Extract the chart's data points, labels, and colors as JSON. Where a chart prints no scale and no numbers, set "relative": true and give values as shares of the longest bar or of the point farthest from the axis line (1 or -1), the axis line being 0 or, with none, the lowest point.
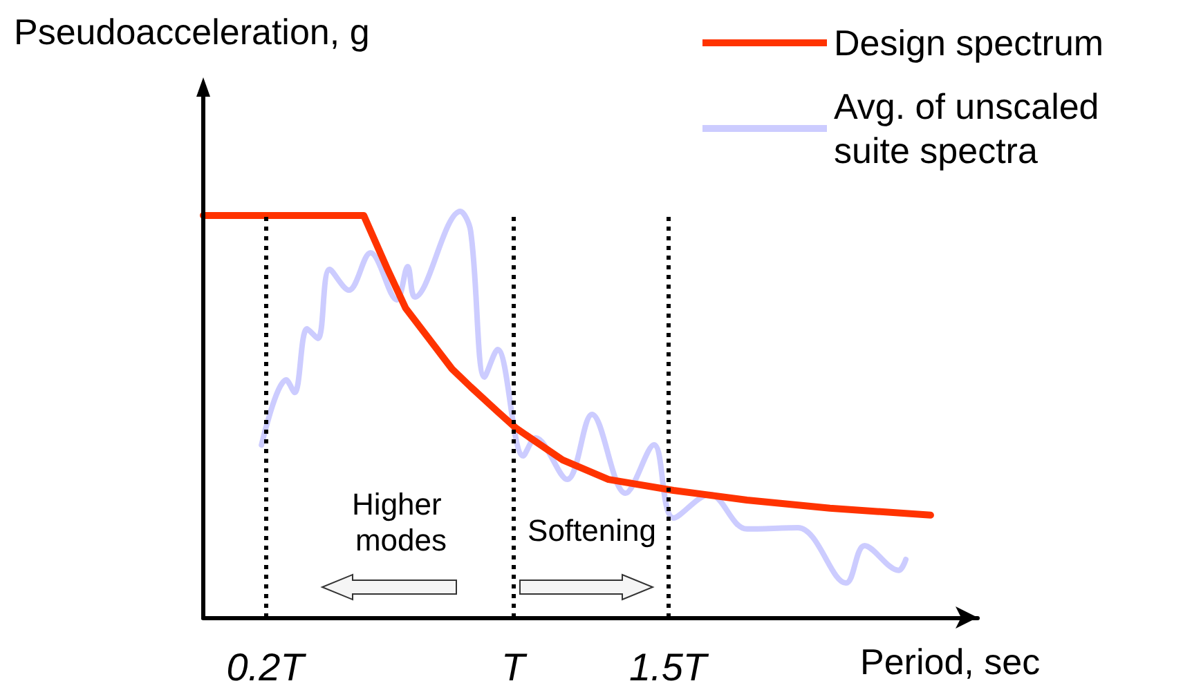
{
  "chart_data": {
    "type": "line",
    "relative": true,
    "ylabel": "Pseudoacceleration, g",
    "xlabel": "Period, sec",
    "xlim": [
      0,
      2.5
    ],
    "xticks": [
      {
        "value": 0.2,
        "label": "0.2T"
      },
      {
        "value": 1,
        "label": "T"
      },
      {
        "value": 1.5,
        "label": "1.5T"
      }
    ],
    "ref_lines": [
      {
        "axis": "x",
        "value": 0.2,
        "color": "#000000",
        "line_style": "dotted"
      },
      {
        "axis": "x",
        "value": 1,
        "color": "#000000",
        "line_style": "dotted"
      },
      {
        "axis": "x",
        "value": 1.5,
        "color": "#000000",
        "line_style": "dotted"
      }
    ],
    "annotations": [
      "Higher modes",
      "Softening"
    ],
    "legend": "top right",
    "grid": false,
    "marker": "none",
    "line_style": "solid",
    "series": [
      {
        "name": "Design spectrum",
        "color": "#ff3300",
        "x": [
          0,
          0.518,
          0.595,
          0.653,
          0.728,
          0.803,
          0.863,
          0.95,
          1.01,
          1.16,
          1.308,
          1.518,
          1.755,
          2.023,
          2.348
        ],
        "values": [
          0.99,
          0.99,
          0.857,
          0.762,
          0.687,
          0.612,
          0.568,
          0.507,
          0.466,
          0.388,
          0.34,
          0.313,
          0.289,
          0.269,
          0.252
        ]
      },
      {
        "name": "Avg. of unscaled suite spectra",
        "color": "#ccccff",
        "x": [
          0.188,
          0.268,
          0.295,
          0.335,
          0.37,
          0.408,
          0.47,
          0.54,
          0.625,
          0.66,
          0.683,
          0.83,
          0.863,
          0.908,
          0.95,
          1.033,
          1.073,
          1.175,
          1.255,
          1.363,
          1.455,
          1.518,
          1.635,
          1.755,
          1.92,
          2.075,
          2.135,
          2.245,
          2.268
        ],
        "values": [
          0.425,
          0.585,
          0.554,
          0.711,
          0.687,
          0.857,
          0.806,
          0.898,
          0.782,
          0.864,
          0.789,
          1,
          0.952,
          0.592,
          0.66,
          0.398,
          0.442,
          0.34,
          0.5,
          0.306,
          0.425,
          0.245,
          0.303,
          0.218,
          0.221,
          0.085,
          0.177,
          0.116,
          0.143
        ]
      }
    ]
  }
}
